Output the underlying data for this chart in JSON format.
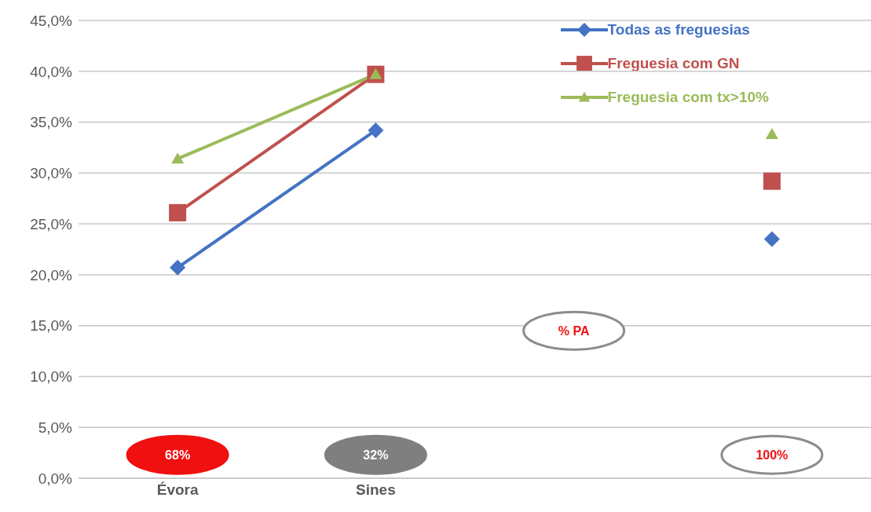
{
  "chart_data": {
    "type": "line",
    "categories": [
      "Évora",
      "Sines",
      null,
      null
    ],
    "series": [
      {
        "name": "Todas as freguesias",
        "color": "#4472c4",
        "marker": "diamond",
        "values": [
          20.7,
          34.2,
          null,
          23.5
        ]
      },
      {
        "name": "Freguesia com GN",
        "color": "#c0504d",
        "marker": "square",
        "values": [
          26.1,
          39.7,
          null,
          29.2
        ]
      },
      {
        "name": "Freguesia com tx>10%",
        "color": "#9bbb59",
        "marker": "triangle",
        "values": [
          31.4,
          39.7,
          null,
          33.8
        ]
      }
    ],
    "ylim": [
      0,
      45
    ],
    "yticks": [
      {
        "value": 0,
        "label": "0,0%"
      },
      {
        "value": 5,
        "label": "5,0%"
      },
      {
        "value": 10,
        "label": "10,0%"
      },
      {
        "value": 15,
        "label": "15,0%"
      },
      {
        "value": 20,
        "label": "20,0%"
      },
      {
        "value": 25,
        "label": "25,0%"
      },
      {
        "value": 30,
        "label": "30,0%"
      },
      {
        "value": 35,
        "label": "35,0%"
      },
      {
        "value": 40,
        "label": "40,0%"
      },
      {
        "value": 45,
        "label": "45,0%"
      }
    ],
    "grid": "y",
    "legend": "top right",
    "annotations": [
      "68%",
      "32%",
      "% PA",
      "100%"
    ]
  }
}
